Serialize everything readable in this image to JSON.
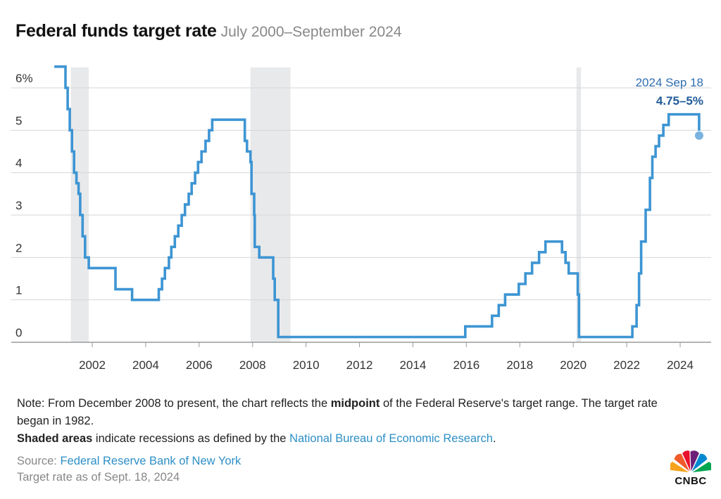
{
  "header": {
    "title": "Federal funds target rate",
    "subtitle": "July 2000–September 2024"
  },
  "chart_data": {
    "type": "line",
    "title": "Federal funds target rate",
    "subtitle": "July 2000–September 2024",
    "xlabel": "",
    "ylabel": "",
    "y_tick_labels": [
      "0",
      "1",
      "2",
      "3",
      "4",
      "5",
      "6%"
    ],
    "y_ticks": [
      0,
      1,
      2,
      3,
      4,
      5,
      6
    ],
    "x_tick_labels": [
      "2002",
      "2004",
      "2006",
      "2008",
      "2010",
      "2012",
      "2014",
      "2016",
      "2018",
      "2020",
      "2022",
      "2024"
    ],
    "x_ticks": [
      2002,
      2004,
      2006,
      2008,
      2010,
      2012,
      2014,
      2016,
      2018,
      2020,
      2022,
      2024
    ],
    "xlim": [
      2000.5,
      2025.0
    ],
    "ylim": [
      0,
      6.5
    ],
    "grid": "horizontal",
    "recessions": [
      [
        2001.2,
        2001.87
      ],
      [
        2007.92,
        2009.42
      ],
      [
        2020.12,
        2020.29
      ]
    ],
    "series": [
      {
        "color": "#3d95d3",
        "step": true,
        "x": [
          2000.58,
          2001.0,
          2001.08,
          2001.16,
          2001.24,
          2001.32,
          2001.41,
          2001.49,
          2001.55,
          2001.64,
          2001.73,
          2001.79,
          2001.87,
          2001.95,
          2002.87,
          2003.49,
          2004.49,
          2004.61,
          2004.72,
          2004.87,
          2004.96,
          2005.09,
          2005.22,
          2005.35,
          2005.47,
          2005.61,
          2005.72,
          2005.85,
          2005.96,
          2006.09,
          2006.24,
          2006.37,
          2006.49,
          2007.71,
          2007.79,
          2007.92,
          2007.96,
          2008.06,
          2008.08,
          2008.25,
          2008.77,
          2008.83,
          2008.96,
          2015.96,
          2016.96,
          2017.21,
          2017.45,
          2017.96,
          2018.21,
          2018.46,
          2018.72,
          2018.96,
          2019.58,
          2019.71,
          2019.83,
          2020.17,
          2020.21,
          2022.21,
          2022.37,
          2022.46,
          2022.54,
          2022.71,
          2022.87,
          2022.96,
          2023.08,
          2023.21,
          2023.37,
          2023.57,
          2024.71
        ],
        "y": [
          6.5,
          6.0,
          5.5,
          5.0,
          4.5,
          4.0,
          3.75,
          3.5,
          3.0,
          2.5,
          2.0,
          2.0,
          1.75,
          1.75,
          1.25,
          1.0,
          1.25,
          1.5,
          1.75,
          2.0,
          2.25,
          2.5,
          2.75,
          3.0,
          3.25,
          3.5,
          3.75,
          4.0,
          4.25,
          4.5,
          4.75,
          5.0,
          5.25,
          4.75,
          4.5,
          4.25,
          3.5,
          3.0,
          2.25,
          2.0,
          1.5,
          1.0,
          0.125,
          0.375,
          0.625,
          0.875,
          1.125,
          1.375,
          1.625,
          1.875,
          2.125,
          2.375,
          2.125,
          1.875,
          1.625,
          1.125,
          0.125,
          0.375,
          0.875,
          1.625,
          2.375,
          3.125,
          3.875,
          4.375,
          4.625,
          4.875,
          5.125,
          5.375,
          4.875
        ]
      }
    ],
    "annotation": {
      "date_label": "2024 Sep 18",
      "value_label": "4.75–5%",
      "x": 2024.71,
      "y": 4.875
    }
  },
  "notes": {
    "line1_pre": "Note: From December 2008 to present, the chart reflects the ",
    "line1_bold": "midpoint",
    "line1_post": " of the Federal Reserve's target range. The target rate began in 1982.",
    "line2_bold": "Shaded areas",
    "line2_mid": " indicate recessions as defined by the ",
    "line2_link": "National Bureau of Economic Research",
    "line2_end": "."
  },
  "source": {
    "label": "Source: ",
    "link": "Federal Reserve Bank of New York",
    "asof": "Target rate as of Sept. 18, 2024"
  },
  "logo": {
    "text": "CNBC",
    "colors": [
      "#f7a21b",
      "#f15a29",
      "#e8112d",
      "#6d2077",
      "#0089d0",
      "#00a650"
    ]
  }
}
